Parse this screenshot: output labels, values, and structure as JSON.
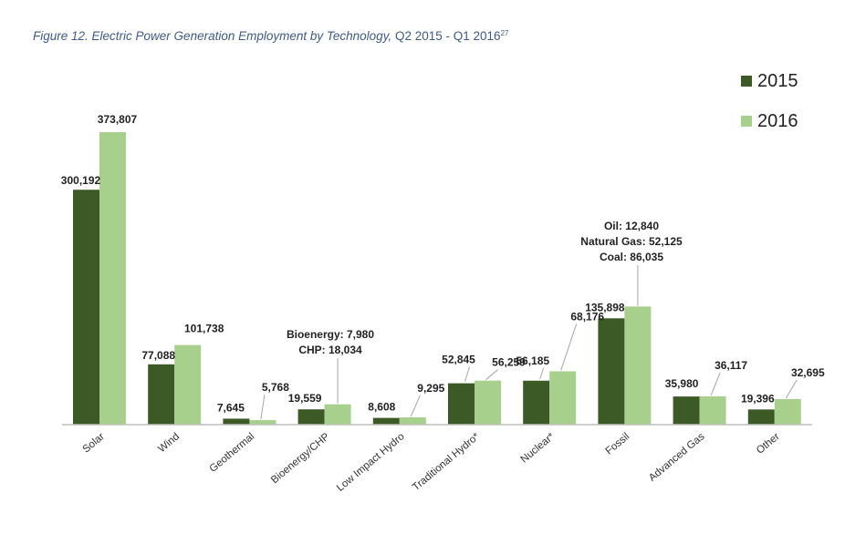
{
  "figure": {
    "label": "Figure 12. Electric Power Generation Employment by Technology,",
    "range": "Q2 2015 - Q1 2016",
    "footnote": "27"
  },
  "colors": {
    "s2015": "#3b5a25",
    "s2016": "#a8d08d",
    "axis": "#bfbfbf",
    "leader": "#a6a6a6"
  },
  "chart_data": {
    "type": "bar",
    "title": "Figure 12. Electric Power Generation Employment by Technology, Q2 2015 - Q1 2016",
    "categories": [
      "Solar",
      "Wind",
      "Geothermal",
      "Bioenergy/CHP",
      "Low Impact Hydro",
      "Traditional Hydro*",
      "Nuclear*",
      "Fossil",
      "Advanced Gas",
      "Other"
    ],
    "series": [
      {
        "name": "2015",
        "values": [
          300192,
          77088,
          7645,
          19559,
          8608,
          52845,
          56185,
          135898,
          35980,
          19396
        ]
      },
      {
        "name": "2016",
        "values": [
          373807,
          101738,
          5768,
          26014,
          9295,
          56259,
          68176,
          151000,
          36117,
          32695
        ]
      }
    ],
    "value_labels": {
      "2015": [
        "300,192",
        "77,088",
        "7,645",
        "19,559",
        "8,608",
        "52,845",
        "56,185",
        "135,898",
        "35,980",
        "19,396"
      ],
      "2016": [
        "373,807",
        "101,738",
        "5,768",
        "",
        "9,295",
        "56,259",
        "68,176",
        "",
        "36,117",
        "32,695"
      ]
    },
    "annotations": [
      {
        "category": "Bioenergy/CHP",
        "lines": [
          "Bioenergy: 7,980",
          "CHP: 18,034"
        ]
      },
      {
        "category": "Fossil",
        "lines": [
          "Oil: 12,840",
          "Natural Gas: 52,125",
          "Coal: 86,035"
        ]
      }
    ],
    "ylim": [
      0,
      375000
    ],
    "legend_position": "top-right",
    "grid": false,
    "xlabel": "",
    "ylabel": ""
  }
}
